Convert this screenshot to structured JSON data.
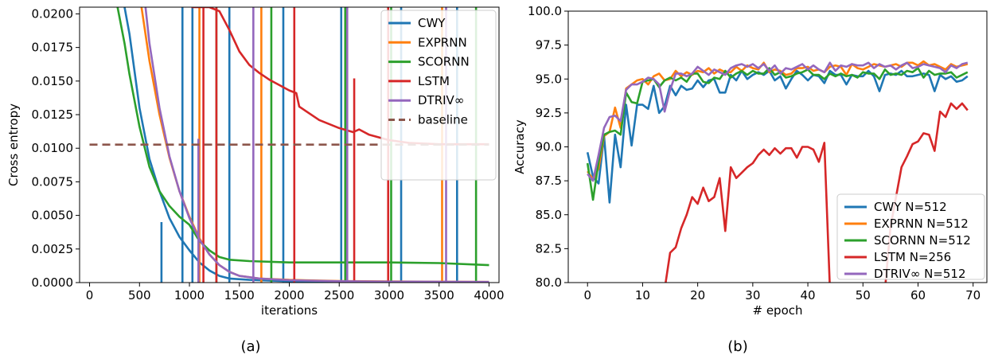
{
  "chart_data": [
    {
      "panel_label": "(a)",
      "type": "line",
      "xlabel": "iterations",
      "ylabel": "Cross entropy",
      "xlim": [
        -100,
        4100
      ],
      "ylim": [
        0,
        0.0205
      ],
      "xticks": [
        0,
        500,
        1000,
        1500,
        2000,
        2500,
        3000,
        3500,
        4000
      ],
      "xtick_labels": [
        "0",
        "500",
        "1000",
        "1500",
        "2000",
        "2500",
        "3000",
        "3500",
        "4000"
      ],
      "yticks": [
        0,
        0.0025,
        0.005,
        0.0075,
        0.01,
        0.0125,
        0.015,
        0.0175,
        0.02
      ],
      "ytick_labels": [
        "0.0000",
        "0.0025",
        "0.0050",
        "0.0075",
        "0.0100",
        "0.0125",
        "0.0150",
        "0.0175",
        "0.0200"
      ],
      "legend_position": "top-right",
      "series": [
        {
          "name": "CWY",
          "color": "#1f77b4",
          "style": "solid",
          "points": [
            [
              350,
              0.0205
            ],
            [
              400,
              0.0185
            ],
            [
              500,
              0.013
            ],
            [
              600,
              0.0092
            ],
            [
              700,
              0.0068
            ],
            [
              800,
              0.0048
            ],
            [
              900,
              0.0034
            ],
            [
              1000,
              0.0024
            ],
            [
              1100,
              0.0015
            ],
            [
              1200,
              0.0009
            ],
            [
              1300,
              0.0005
            ],
            [
              1400,
              0.0003
            ],
            [
              1600,
              0.0002
            ],
            [
              2000,
              0.0001
            ],
            [
              3000,
              5e-05
            ],
            [
              4000,
              3e-05
            ]
          ],
          "spikes": [
            [
              720,
              0.0045
            ],
            [
              930,
              0.0205
            ],
            [
              1030,
              0.0205
            ],
            [
              1400,
              0.0205
            ],
            [
              1940,
              0.0205
            ],
            [
              2520,
              0.0205
            ],
            [
              3120,
              0.0205
            ],
            [
              3680,
              0.0205
            ]
          ]
        },
        {
          "name": "EXPRNN",
          "color": "#ff7f0e",
          "style": "solid",
          "points": [
            [
              520,
              0.0205
            ],
            [
              600,
              0.0165
            ],
            [
              700,
              0.0125
            ],
            [
              800,
              0.0093
            ],
            [
              900,
              0.0068
            ],
            [
              1000,
              0.0049
            ],
            [
              1100,
              0.0033
            ],
            [
              1200,
              0.0021
            ],
            [
              1300,
              0.0013
            ],
            [
              1400,
              0.0008
            ],
            [
              1500,
              0.0005
            ],
            [
              1700,
              0.0003
            ],
            [
              2000,
              0.0002
            ],
            [
              2500,
              0.00012
            ],
            [
              3000,
              8e-05
            ],
            [
              4000,
              5e-05
            ]
          ],
          "spikes": [
            [
              1100,
              0.0205
            ],
            [
              1720,
              0.0205
            ],
            [
              3530,
              0.0205
            ]
          ]
        },
        {
          "name": "SCORNN",
          "color": "#2ca02c",
          "style": "solid",
          "points": [
            [
              280,
              0.0205
            ],
            [
              350,
              0.0178
            ],
            [
              400,
              0.0155
            ],
            [
              500,
              0.0116
            ],
            [
              600,
              0.0086
            ],
            [
              700,
              0.0068
            ],
            [
              800,
              0.0057
            ],
            [
              900,
              0.0049
            ],
            [
              1000,
              0.0043
            ],
            [
              1100,
              0.0031
            ],
            [
              1200,
              0.0024
            ],
            [
              1300,
              0.0019
            ],
            [
              1400,
              0.0017
            ],
            [
              1600,
              0.0016
            ],
            [
              2000,
              0.0015
            ],
            [
              2500,
              0.0015
            ],
            [
              3000,
              0.0015
            ],
            [
              3500,
              0.00145
            ],
            [
              4000,
              0.0013
            ]
          ],
          "spikes": [
            [
              1270,
              0.0205
            ],
            [
              1820,
              0.0205
            ],
            [
              2560,
              0.0205
            ],
            [
              3020,
              0.0205
            ],
            [
              3870,
              0.0205
            ]
          ]
        },
        {
          "name": "LSTM",
          "color": "#d62728",
          "style": "solid",
          "points": [
            [
              1020,
              0.0205
            ],
            [
              1100,
              0.0205
            ],
            [
              1200,
              0.0205
            ],
            [
              1300,
              0.0202
            ],
            [
              1400,
              0.0188
            ],
            [
              1500,
              0.0172
            ],
            [
              1600,
              0.0162
            ],
            [
              1700,
              0.0156
            ],
            [
              1800,
              0.0151
            ],
            [
              1900,
              0.0147
            ],
            [
              2000,
              0.0143
            ],
            [
              2070,
              0.0141
            ],
            [
              2100,
              0.0131
            ],
            [
              2300,
              0.0121
            ],
            [
              2500,
              0.0115
            ],
            [
              2640,
              0.0112
            ],
            [
              2700,
              0.0114
            ],
            [
              2800,
              0.011
            ],
            [
              3000,
              0.0106
            ],
            [
              3200,
              0.0104
            ],
            [
              3500,
              0.0103
            ],
            [
              4000,
              0.0103
            ]
          ],
          "spikes": [
            [
              1140,
              0.0205
            ],
            [
              1270,
              0.0205
            ],
            [
              2050,
              0.0205
            ],
            [
              2650,
              0.0152
            ],
            [
              2990,
              0.0205
            ]
          ]
        },
        {
          "name": "DTRIV∞",
          "color": "#9467bd",
          "style": "solid",
          "points": [
            [
              560,
              0.0205
            ],
            [
              600,
              0.0178
            ],
            [
              700,
              0.013
            ],
            [
              800,
              0.0094
            ],
            [
              900,
              0.0068
            ],
            [
              1000,
              0.0048
            ],
            [
              1100,
              0.0032
            ],
            [
              1200,
              0.0021
            ],
            [
              1300,
              0.0013
            ],
            [
              1400,
              0.0008
            ],
            [
              1500,
              0.0005
            ],
            [
              1700,
              0.0003
            ],
            [
              2000,
              0.00018
            ],
            [
              2500,
              0.0001
            ],
            [
              3000,
              7e-05
            ],
            [
              4000,
              5e-05
            ]
          ],
          "spikes": [
            [
              1090,
              0.0107
            ],
            [
              1640,
              0.0205
            ],
            [
              2580,
              0.0205
            ],
            [
              3570,
              0.0205
            ]
          ]
        },
        {
          "name": "baseline",
          "color": "#8c564b",
          "style": "dashed",
          "points": [
            [
              0,
              0.01027
            ],
            [
              4000,
              0.01027
            ]
          ]
        }
      ]
    },
    {
      "panel_label": "(b)",
      "type": "line",
      "xlabel": "# epoch",
      "ylabel": "Accuracy",
      "xlim": [
        -3.5,
        72.5
      ],
      "ylim": [
        80,
        100
      ],
      "xticks": [
        0,
        10,
        20,
        30,
        40,
        50,
        60,
        70
      ],
      "xtick_labels": [
        "0",
        "10",
        "20",
        "30",
        "40",
        "50",
        "60",
        "70"
      ],
      "yticks": [
        80,
        82.5,
        85,
        87.5,
        90,
        92.5,
        95,
        97.5,
        100
      ],
      "ytick_labels": [
        "80.0",
        "82.5",
        "85.0",
        "87.5",
        "90.0",
        "92.5",
        "95.0",
        "97.5",
        "100.0"
      ],
      "legend_position": "lower-right",
      "series": [
        {
          "name": "CWY N=512",
          "color": "#1f77b4",
          "values": [
            89.6,
            87.8,
            87.3,
            90.8,
            85.9,
            90.9,
            88.5,
            93.1,
            90.1,
            93.1,
            93.1,
            92.8,
            94.5,
            92.5,
            93.0,
            94.5,
            93.8,
            94.5,
            94.2,
            94.3,
            94.9,
            94.4,
            94.9,
            95.0,
            94.0,
            94.0,
            95.3,
            94.9,
            95.6,
            95.0,
            95.3,
            95.5,
            95.3,
            95.6,
            94.9,
            95.2,
            94.3,
            95.0,
            95.6,
            95.3,
            94.9,
            95.3,
            95.2,
            94.7,
            95.6,
            95.3,
            95.3,
            94.6,
            95.3,
            95.2,
            95.2,
            95.6,
            95.2,
            94.1,
            95.3,
            95.4,
            95.3,
            95.6,
            95.2,
            95.2,
            95.3,
            95.4,
            95.3,
            94.1,
            95.3,
            95.0,
            95.2,
            94.8,
            94.9,
            95.2
          ]
        },
        {
          "name": "EXPRNN N=512",
          "color": "#ff7f0e",
          "values": [
            88.2,
            87.6,
            88.4,
            90.8,
            91.1,
            92.9,
            91.4,
            94.3,
            94.6,
            94.9,
            95.0,
            94.6,
            95.2,
            95.4,
            94.9,
            95.0,
            95.6,
            95.2,
            95.5,
            95.3,
            95.6,
            95.5,
            95.8,
            95.4,
            95.7,
            95.5,
            95.5,
            95.9,
            95.6,
            96.0,
            95.8,
            95.7,
            96.2,
            95.5,
            95.7,
            95.6,
            95.3,
            95.4,
            95.8,
            95.8,
            95.9,
            95.6,
            95.7,
            95.5,
            95.9,
            96.0,
            95.9,
            95.3,
            96.1,
            95.8,
            95.7,
            95.9,
            96.1,
            96.0,
            95.9,
            96.0,
            96.1,
            95.9,
            96.2,
            96.2,
            96.0,
            96.3,
            96.0,
            96.1,
            95.9,
            95.7,
            96.1,
            95.9,
            96.0,
            96.1
          ]
        },
        {
          "name": "SCORNN N=512",
          "color": "#2ca02c",
          "values": [
            88.8,
            86.1,
            88.9,
            90.9,
            91.1,
            91.2,
            90.9,
            94.0,
            93.3,
            93.2,
            94.8,
            94.9,
            95.0,
            94.4,
            94.9,
            95.1,
            94.9,
            95.1,
            94.8,
            95.4,
            95.4,
            94.8,
            94.7,
            95.1,
            95.0,
            95.6,
            95.1,
            95.4,
            95.6,
            95.3,
            95.6,
            95.4,
            95.4,
            95.8,
            95.3,
            95.5,
            95.1,
            95.2,
            95.4,
            95.5,
            95.7,
            95.3,
            95.3,
            95.0,
            95.4,
            95.2,
            95.4,
            95.2,
            95.3,
            95.1,
            95.5,
            95.4,
            95.4,
            95.0,
            95.7,
            95.3,
            95.4,
            95.3,
            95.6,
            95.5,
            95.8,
            95.1,
            95.6,
            95.3,
            95.4,
            95.4,
            95.5,
            95.1,
            95.3,
            95.5
          ]
        },
        {
          "name": "LSTM N=256",
          "color": "#d62728",
          "values": [
            null,
            null,
            null,
            null,
            null,
            null,
            null,
            null,
            null,
            null,
            null,
            null,
            null,
            null,
            79.5,
            82.2,
            82.6,
            84.0,
            85.0,
            86.3,
            85.8,
            87.0,
            86.0,
            86.3,
            87.7,
            83.8,
            88.5,
            87.7,
            88.1,
            88.5,
            88.8,
            89.4,
            89.8,
            89.4,
            89.9,
            89.5,
            89.9,
            89.9,
            89.2,
            90.0,
            90.0,
            89.8,
            88.9,
            90.3,
            79.5,
            null,
            null,
            null,
            null,
            null,
            null,
            null,
            null,
            null,
            79.5,
            84.1,
            86.3,
            88.5,
            89.3,
            90.2,
            90.4,
            91.0,
            90.9,
            89.7,
            92.6,
            92.2,
            93.2,
            92.8,
            93.2,
            92.7
          ]
        },
        {
          "name": "DTRIV∞ N=512",
          "color": "#9467bd",
          "values": [
            88.0,
            87.5,
            89.4,
            91.4,
            92.2,
            92.3,
            91.9,
            94.2,
            94.6,
            94.6,
            94.8,
            95.1,
            95.0,
            94.6,
            92.6,
            94.2,
            95.4,
            95.4,
            95.2,
            95.4,
            95.9,
            95.6,
            95.3,
            95.7,
            95.5,
            95.3,
            95.8,
            96.0,
            96.1,
            95.9,
            96.1,
            95.8,
            96.1,
            95.6,
            96.0,
            95.4,
            95.8,
            95.7,
            95.9,
            96.1,
            95.7,
            96.0,
            95.7,
            95.5,
            96.2,
            95.6,
            96.0,
            95.9,
            96.1,
            96.0,
            96.0,
            96.2,
            95.8,
            96.1,
            95.9,
            96.0,
            95.7,
            96.0,
            96.2,
            95.8,
            95.9,
            96.1,
            96.0,
            95.9,
            95.8,
            95.5,
            96.0,
            95.8,
            96.1,
            96.2
          ]
        }
      ]
    }
  ]
}
